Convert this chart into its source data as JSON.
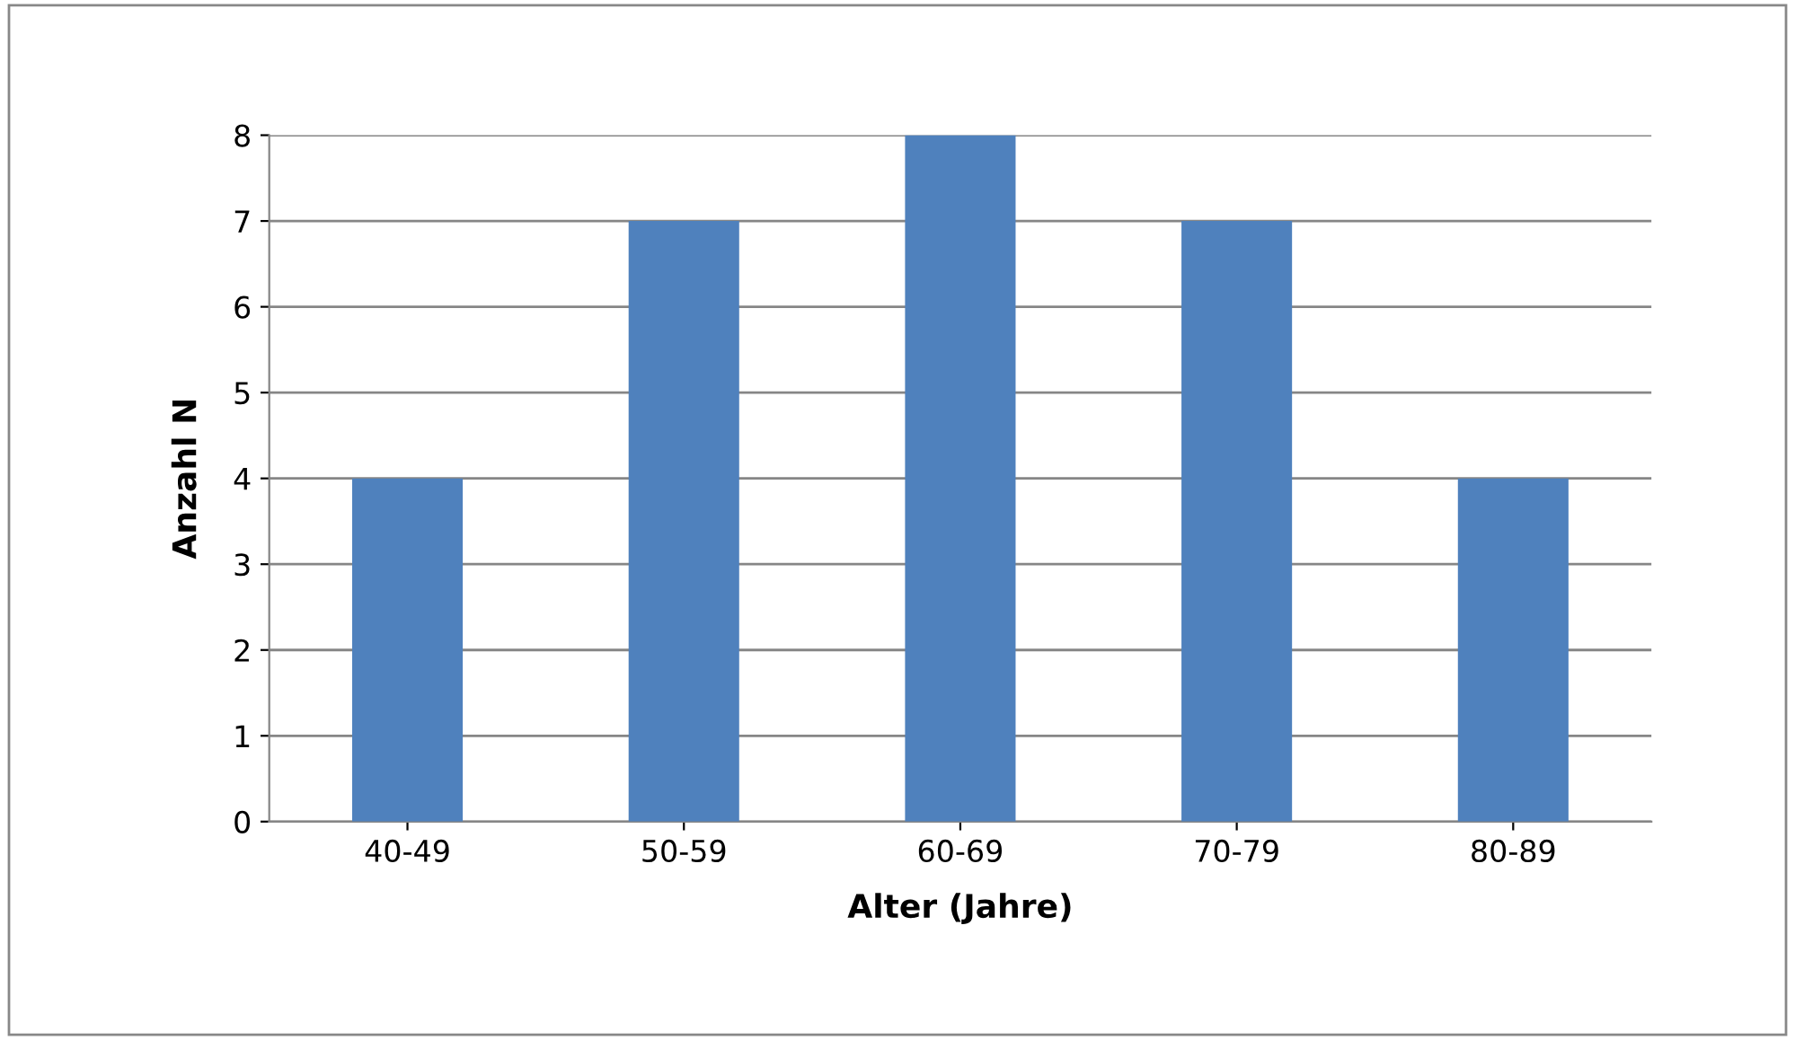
{
  "chart_data": {
    "type": "bar",
    "xlabel": "Alter (Jahre)",
    "ylabel": "Anzahl N",
    "categories": [
      "40-49",
      "50-59",
      "60-69",
      "70-79",
      "80-89"
    ],
    "values": [
      4,
      7,
      8,
      7,
      4
    ],
    "color": "#4f81bd",
    "ylim": [
      0,
      8
    ],
    "yticks": [
      0,
      1,
      2,
      3,
      4,
      5,
      6,
      7,
      8
    ],
    "grid": "y"
  }
}
